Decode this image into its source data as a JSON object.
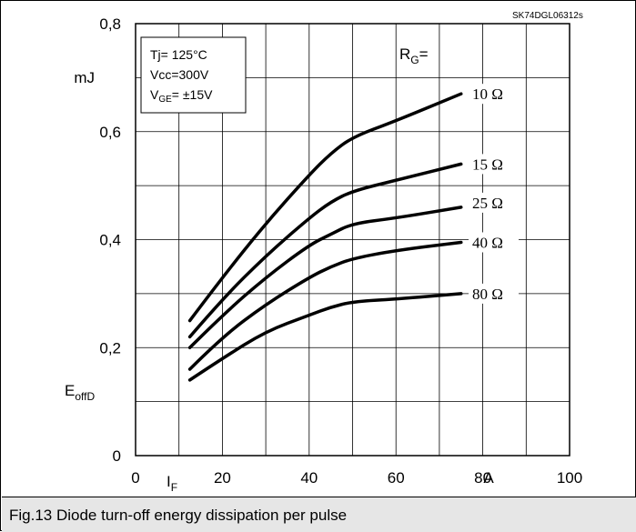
{
  "caption": "Fig.13 Diode turn-off energy dissipation per pulse",
  "chart_data": {
    "type": "line",
    "watermark": "SK74DGL06312s",
    "xlim": [
      0,
      100
    ],
    "ylim": [
      0,
      0.8
    ],
    "x_ticks": [
      {
        "value": 0,
        "label": "0"
      },
      {
        "value": 20,
        "label": "20"
      },
      {
        "value": 40,
        "label": "40"
      },
      {
        "value": 60,
        "label": "60"
      },
      {
        "value": 80,
        "label": "80"
      },
      {
        "value": 100,
        "label": "100"
      }
    ],
    "y_ticks": [
      {
        "value": 0,
        "label": "0"
      },
      {
        "value": 0.2,
        "label": "0,2"
      },
      {
        "value": 0.4,
        "label": "0,4"
      },
      {
        "value": 0.6,
        "label": "0,6"
      },
      {
        "value": 0.8,
        "label": "0,8"
      }
    ],
    "xlabel": "I",
    "xlabel_sub": "F",
    "x_unit": "A",
    "ylabel": "E",
    "ylabel_sub": "offD",
    "y_unit": "mJ",
    "grid": true,
    "conditions": [
      {
        "text": "Tj= 125°C"
      },
      {
        "text": "Vcc=300V"
      },
      {
        "prefix": "V",
        "sub": "GE",
        "text": "= ±15V"
      }
    ],
    "series_title": "R",
    "series_title_sub": "G",
    "series_title_suffix": "=",
    "x": [
      12.5,
      20,
      30,
      40,
      45,
      50,
      60,
      75
    ],
    "series": [
      {
        "name": "10 Ω",
        "values": [
          0.25,
          0.33,
          0.43,
          0.52,
          0.56,
          0.59,
          0.62,
          0.67
        ]
      },
      {
        "name": "15 Ω",
        "values": [
          0.22,
          0.29,
          0.37,
          0.44,
          0.47,
          0.49,
          0.51,
          0.54
        ]
      },
      {
        "name": "25 Ω",
        "values": [
          0.2,
          0.26,
          0.33,
          0.39,
          0.41,
          0.43,
          0.44,
          0.46
        ]
      },
      {
        "name": "40 Ω",
        "values": [
          0.16,
          0.22,
          0.28,
          0.33,
          0.35,
          0.365,
          0.38,
          0.395
        ]
      },
      {
        "name": "80 Ω",
        "values": [
          0.14,
          0.18,
          0.23,
          0.26,
          0.275,
          0.285,
          0.29,
          0.3
        ]
      }
    ]
  }
}
